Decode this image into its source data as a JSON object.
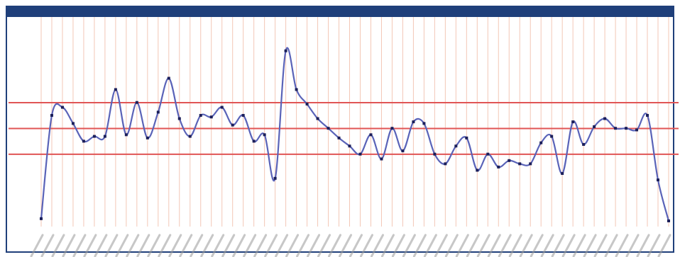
{
  "window": {
    "title": "",
    "corner_glyph": ""
  },
  "colors": {
    "frame": "#1f3f7a",
    "line": "#5a63b8",
    "marker": "#1b1f5a",
    "hline": "#e05555",
    "vgrid": "#f3c7b6"
  },
  "chart_data": {
    "type": "line",
    "title": "",
    "xlabel": "",
    "ylabel": "",
    "ylim": [
      0,
      100
    ],
    "grid": "vertical-only",
    "legend": "none",
    "reference_lines": [
      {
        "label": "",
        "value": 68
      },
      {
        "label": "",
        "value": 52
      },
      {
        "label": "",
        "value": 36
      }
    ],
    "series": [
      {
        "values": [
          4,
          68,
          73,
          63,
          52,
          55,
          55,
          84,
          56,
          76,
          54,
          70,
          91,
          66,
          55,
          68,
          67,
          73,
          62,
          68,
          52,
          56,
          29,
          108,
          84,
          75,
          66,
          60,
          54,
          49,
          44,
          56,
          41,
          60,
          46,
          64,
          63,
          44,
          38,
          49,
          54,
          34,
          44,
          36,
          40,
          38,
          38,
          51,
          55,
          32,
          64,
          50,
          61,
          66,
          60,
          60,
          59,
          68,
          28,
          2
        ]
      }
    ]
  }
}
